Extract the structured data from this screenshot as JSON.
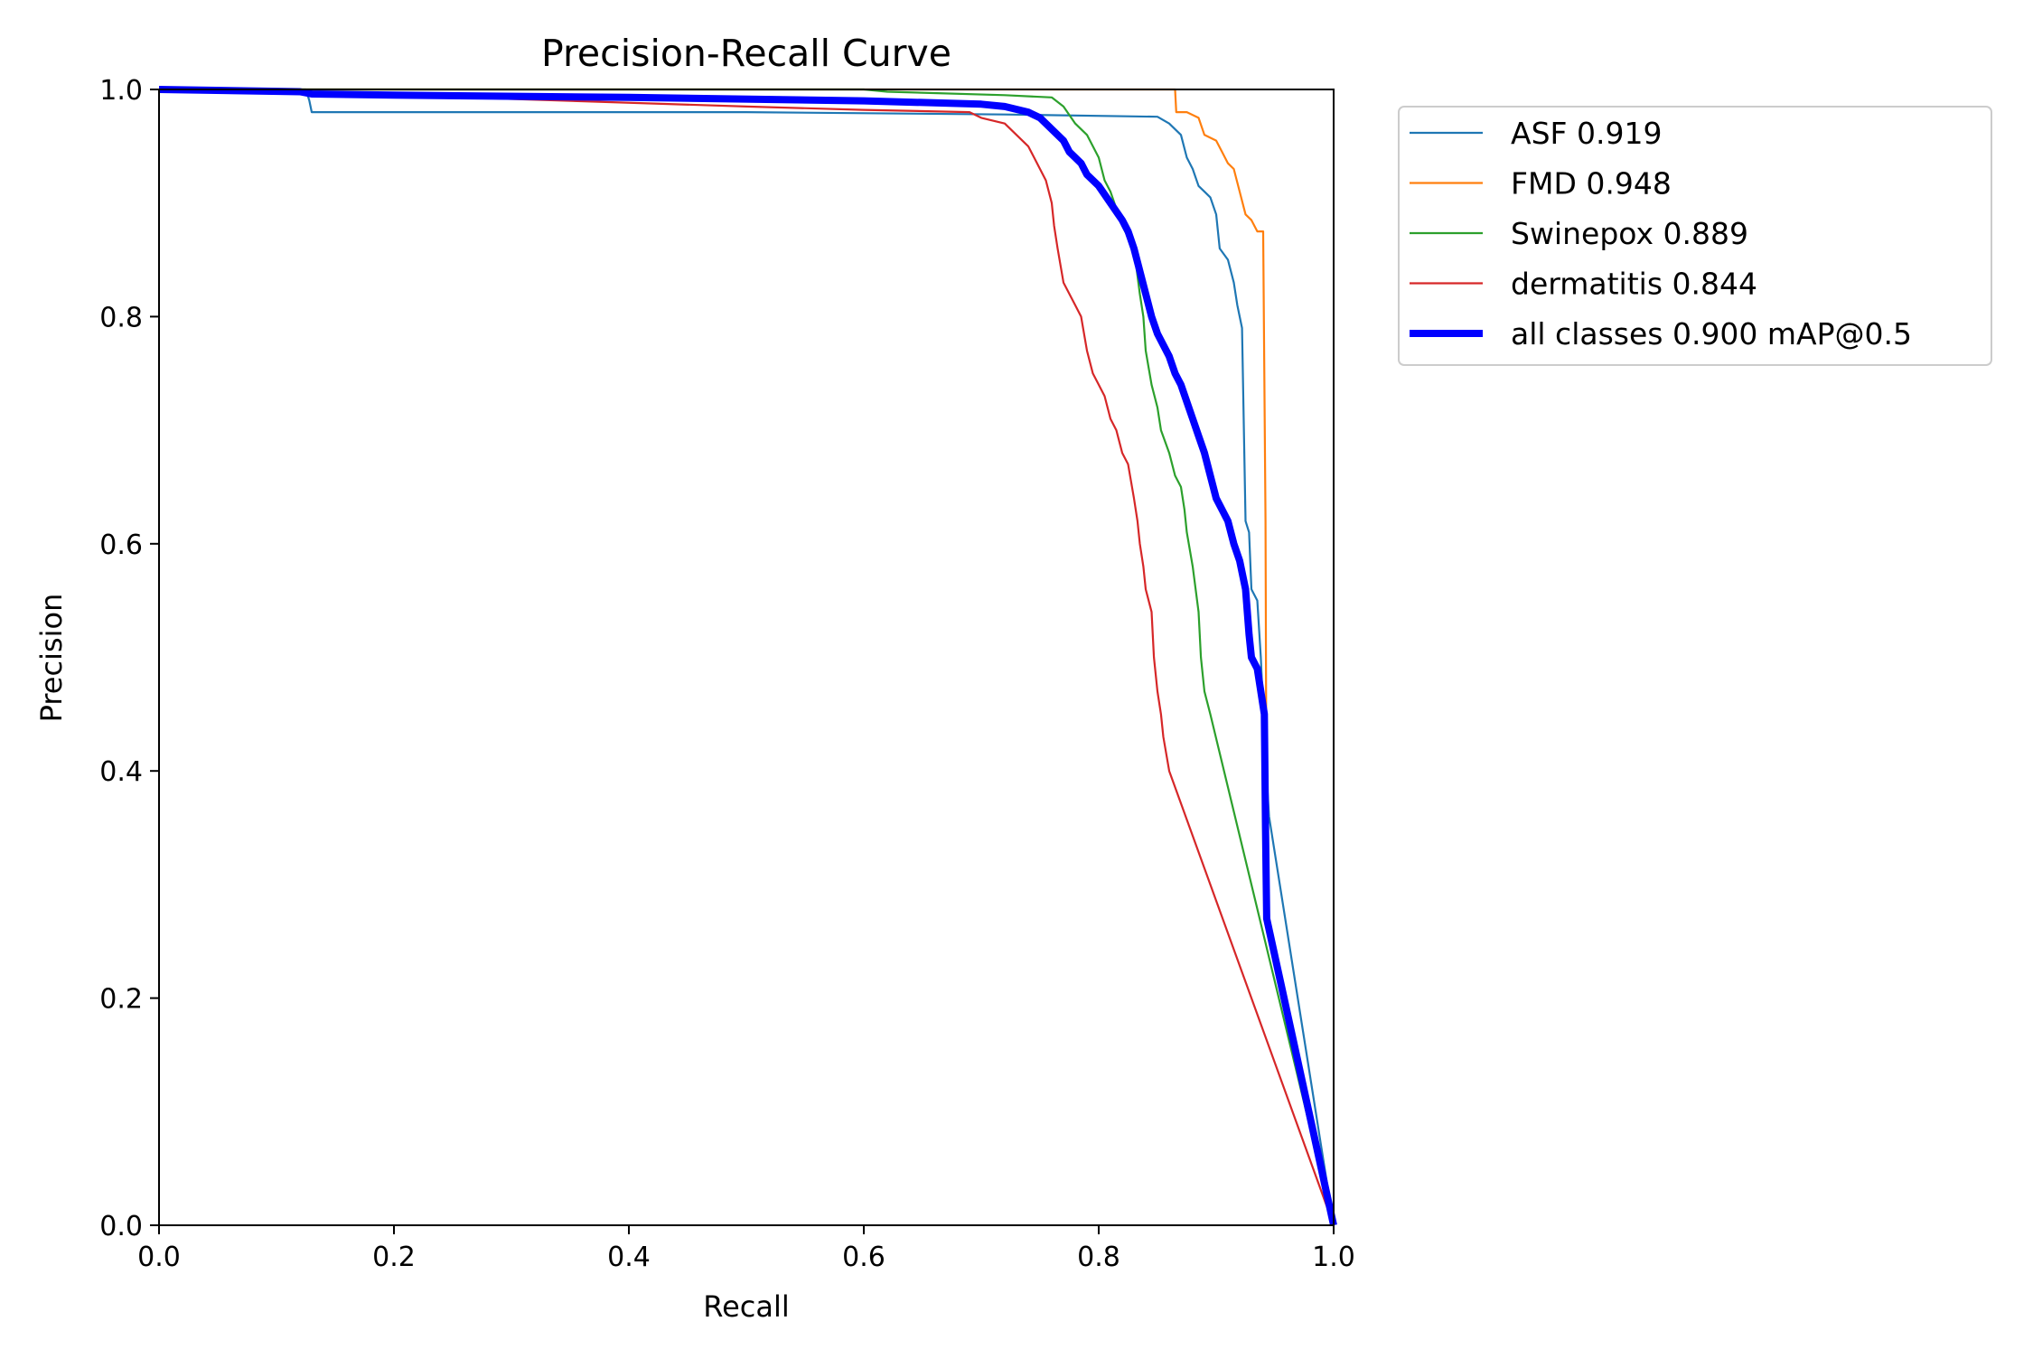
{
  "chart_data": {
    "type": "line",
    "title": "Precision-Recall Curve",
    "xlabel": "Recall",
    "ylabel": "Precision",
    "xlim": [
      0,
      1
    ],
    "ylim": [
      0,
      1
    ],
    "xticks": [
      "0.0",
      "0.2",
      "0.4",
      "0.6",
      "0.8",
      "1.0"
    ],
    "yticks": [
      "0.0",
      "0.2",
      "0.4",
      "0.6",
      "0.8",
      "1.0"
    ],
    "grid": false,
    "legend_position": "outside-top-right",
    "series": [
      {
        "name": "ASF 0.919",
        "color": "#1f77b4",
        "emphasis": false,
        "points": [
          [
            0,
            1.0
          ],
          [
            0.125,
            1.0
          ],
          [
            0.128,
            0.99
          ],
          [
            0.13,
            0.98
          ],
          [
            0.5,
            0.98
          ],
          [
            0.72,
            0.978
          ],
          [
            0.85,
            0.976
          ],
          [
            0.86,
            0.97
          ],
          [
            0.87,
            0.96
          ],
          [
            0.875,
            0.94
          ],
          [
            0.88,
            0.93
          ],
          [
            0.885,
            0.915
          ],
          [
            0.89,
            0.91
          ],
          [
            0.895,
            0.905
          ],
          [
            0.9,
            0.89
          ],
          [
            0.903,
            0.86
          ],
          [
            0.91,
            0.85
          ],
          [
            0.915,
            0.83
          ],
          [
            0.918,
            0.81
          ],
          [
            0.92,
            0.8
          ],
          [
            0.922,
            0.79
          ],
          [
            0.925,
            0.62
          ],
          [
            0.928,
            0.61
          ],
          [
            0.93,
            0.56
          ],
          [
            0.935,
            0.55
          ],
          [
            0.938,
            0.5
          ],
          [
            0.941,
            0.43
          ],
          [
            0.945,
            0.36
          ],
          [
            1.0,
            0.0
          ]
        ]
      },
      {
        "name": "FMD 0.948",
        "color": "#ff7f0e",
        "emphasis": false,
        "points": [
          [
            0,
            1.0
          ],
          [
            0.865,
            1.0
          ],
          [
            0.866,
            0.98
          ],
          [
            0.875,
            0.98
          ],
          [
            0.885,
            0.975
          ],
          [
            0.89,
            0.96
          ],
          [
            0.9,
            0.955
          ],
          [
            0.905,
            0.945
          ],
          [
            0.91,
            0.935
          ],
          [
            0.915,
            0.93
          ],
          [
            0.92,
            0.91
          ],
          [
            0.925,
            0.89
          ],
          [
            0.93,
            0.885
          ],
          [
            0.935,
            0.875
          ],
          [
            0.94,
            0.875
          ],
          [
            0.942,
            0.62
          ],
          [
            0.943,
            0.3
          ],
          [
            0.945,
            0.27
          ],
          [
            1.0,
            0.0
          ]
        ]
      },
      {
        "name": "Swinepox 0.889",
        "color": "#2ca02c",
        "emphasis": false,
        "points": [
          [
            0,
            1.0
          ],
          [
            0.6,
            1.0
          ],
          [
            0.62,
            0.998
          ],
          [
            0.72,
            0.995
          ],
          [
            0.76,
            0.993
          ],
          [
            0.77,
            0.985
          ],
          [
            0.78,
            0.97
          ],
          [
            0.79,
            0.96
          ],
          [
            0.8,
            0.94
          ],
          [
            0.805,
            0.92
          ],
          [
            0.81,
            0.91
          ],
          [
            0.82,
            0.88
          ],
          [
            0.83,
            0.86
          ],
          [
            0.835,
            0.82
          ],
          [
            0.838,
            0.8
          ],
          [
            0.84,
            0.77
          ],
          [
            0.845,
            0.74
          ],
          [
            0.85,
            0.72
          ],
          [
            0.853,
            0.7
          ],
          [
            0.86,
            0.68
          ],
          [
            0.865,
            0.66
          ],
          [
            0.87,
            0.65
          ],
          [
            0.873,
            0.63
          ],
          [
            0.875,
            0.61
          ],
          [
            0.88,
            0.58
          ],
          [
            0.885,
            0.54
          ],
          [
            0.887,
            0.5
          ],
          [
            0.89,
            0.47
          ],
          [
            0.895,
            0.45
          ],
          [
            1.0,
            0.0
          ]
        ]
      },
      {
        "name": "dermatitis 0.844",
        "color": "#d62728",
        "emphasis": false,
        "points": [
          [
            0,
            1.0
          ],
          [
            0.2,
            0.995
          ],
          [
            0.5,
            0.985
          ],
          [
            0.6,
            0.982
          ],
          [
            0.69,
            0.98
          ],
          [
            0.7,
            0.975
          ],
          [
            0.72,
            0.97
          ],
          [
            0.73,
            0.96
          ],
          [
            0.74,
            0.95
          ],
          [
            0.745,
            0.94
          ],
          [
            0.75,
            0.93
          ],
          [
            0.755,
            0.92
          ],
          [
            0.76,
            0.9
          ],
          [
            0.762,
            0.88
          ],
          [
            0.765,
            0.86
          ],
          [
            0.77,
            0.83
          ],
          [
            0.775,
            0.82
          ],
          [
            0.78,
            0.81
          ],
          [
            0.785,
            0.8
          ],
          [
            0.79,
            0.77
          ],
          [
            0.795,
            0.75
          ],
          [
            0.8,
            0.74
          ],
          [
            0.805,
            0.73
          ],
          [
            0.81,
            0.71
          ],
          [
            0.815,
            0.7
          ],
          [
            0.82,
            0.68
          ],
          [
            0.825,
            0.67
          ],
          [
            0.83,
            0.64
          ],
          [
            0.833,
            0.62
          ],
          [
            0.835,
            0.6
          ],
          [
            0.838,
            0.58
          ],
          [
            0.84,
            0.56
          ],
          [
            0.845,
            0.54
          ],
          [
            0.847,
            0.5
          ],
          [
            0.85,
            0.47
          ],
          [
            0.853,
            0.45
          ],
          [
            0.855,
            0.43
          ],
          [
            0.86,
            0.4
          ],
          [
            1.0,
            0.0
          ]
        ]
      },
      {
        "name": "all classes 0.900 mAP@0.5",
        "color": "#0000ff",
        "emphasis": true,
        "points": [
          [
            0,
            1.0
          ],
          [
            0.12,
            0.998
          ],
          [
            0.13,
            0.996
          ],
          [
            0.2,
            0.995
          ],
          [
            0.4,
            0.993
          ],
          [
            0.6,
            0.99
          ],
          [
            0.7,
            0.987
          ],
          [
            0.72,
            0.985
          ],
          [
            0.74,
            0.98
          ],
          [
            0.75,
            0.975
          ],
          [
            0.76,
            0.965
          ],
          [
            0.77,
            0.955
          ],
          [
            0.775,
            0.945
          ],
          [
            0.78,
            0.94
          ],
          [
            0.785,
            0.935
          ],
          [
            0.79,
            0.925
          ],
          [
            0.8,
            0.915
          ],
          [
            0.81,
            0.9
          ],
          [
            0.82,
            0.885
          ],
          [
            0.825,
            0.875
          ],
          [
            0.83,
            0.86
          ],
          [
            0.835,
            0.84
          ],
          [
            0.84,
            0.82
          ],
          [
            0.845,
            0.8
          ],
          [
            0.85,
            0.785
          ],
          [
            0.86,
            0.765
          ],
          [
            0.865,
            0.75
          ],
          [
            0.87,
            0.74
          ],
          [
            0.875,
            0.725
          ],
          [
            0.88,
            0.71
          ],
          [
            0.885,
            0.695
          ],
          [
            0.89,
            0.68
          ],
          [
            0.895,
            0.66
          ],
          [
            0.9,
            0.64
          ],
          [
            0.905,
            0.63
          ],
          [
            0.91,
            0.62
          ],
          [
            0.915,
            0.6
          ],
          [
            0.92,
            0.585
          ],
          [
            0.925,
            0.56
          ],
          [
            0.928,
            0.52
          ],
          [
            0.93,
            0.5
          ],
          [
            0.935,
            0.49
          ],
          [
            0.938,
            0.47
          ],
          [
            0.941,
            0.45
          ],
          [
            0.942,
            0.35
          ],
          [
            0.943,
            0.27
          ],
          [
            1.0,
            0.0
          ]
        ]
      }
    ]
  }
}
